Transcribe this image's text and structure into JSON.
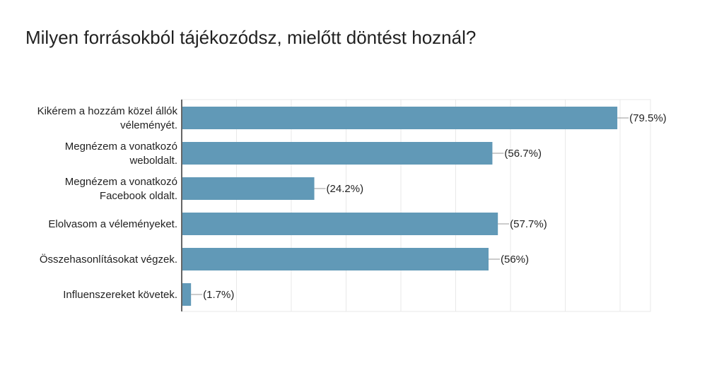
{
  "chart_data": {
    "type": "bar",
    "orientation": "horizontal",
    "title": "Milyen forrásokból tájékozódsz, mielőtt döntést hoznál?",
    "categories": [
      [
        "Kikérem a hozzám közel állók",
        "véleményét."
      ],
      [
        "Megnézem a vonatkozó",
        "weboldalt."
      ],
      [
        "Megnézem a vonatkozó",
        "Facebook oldalt."
      ],
      [
        "Elolvasom a véleményeket."
      ],
      [
        "Összehasonlításokat végzek."
      ],
      [
        "Influenszereket követek."
      ]
    ],
    "values": [
      79.5,
      56.7,
      24.2,
      57.7,
      56,
      1.7
    ],
    "value_labels": [
      "(79.5%)",
      "(56.7%)",
      "(24.2%)",
      "(57.7%)",
      "(56%)",
      "(1.7%)"
    ],
    "xlim": [
      0,
      100
    ],
    "grid": true,
    "bar_color": "#6199b7",
    "grid_color": "#e8e8e8",
    "axis_color": "#333333",
    "leader_color": "#999999"
  }
}
